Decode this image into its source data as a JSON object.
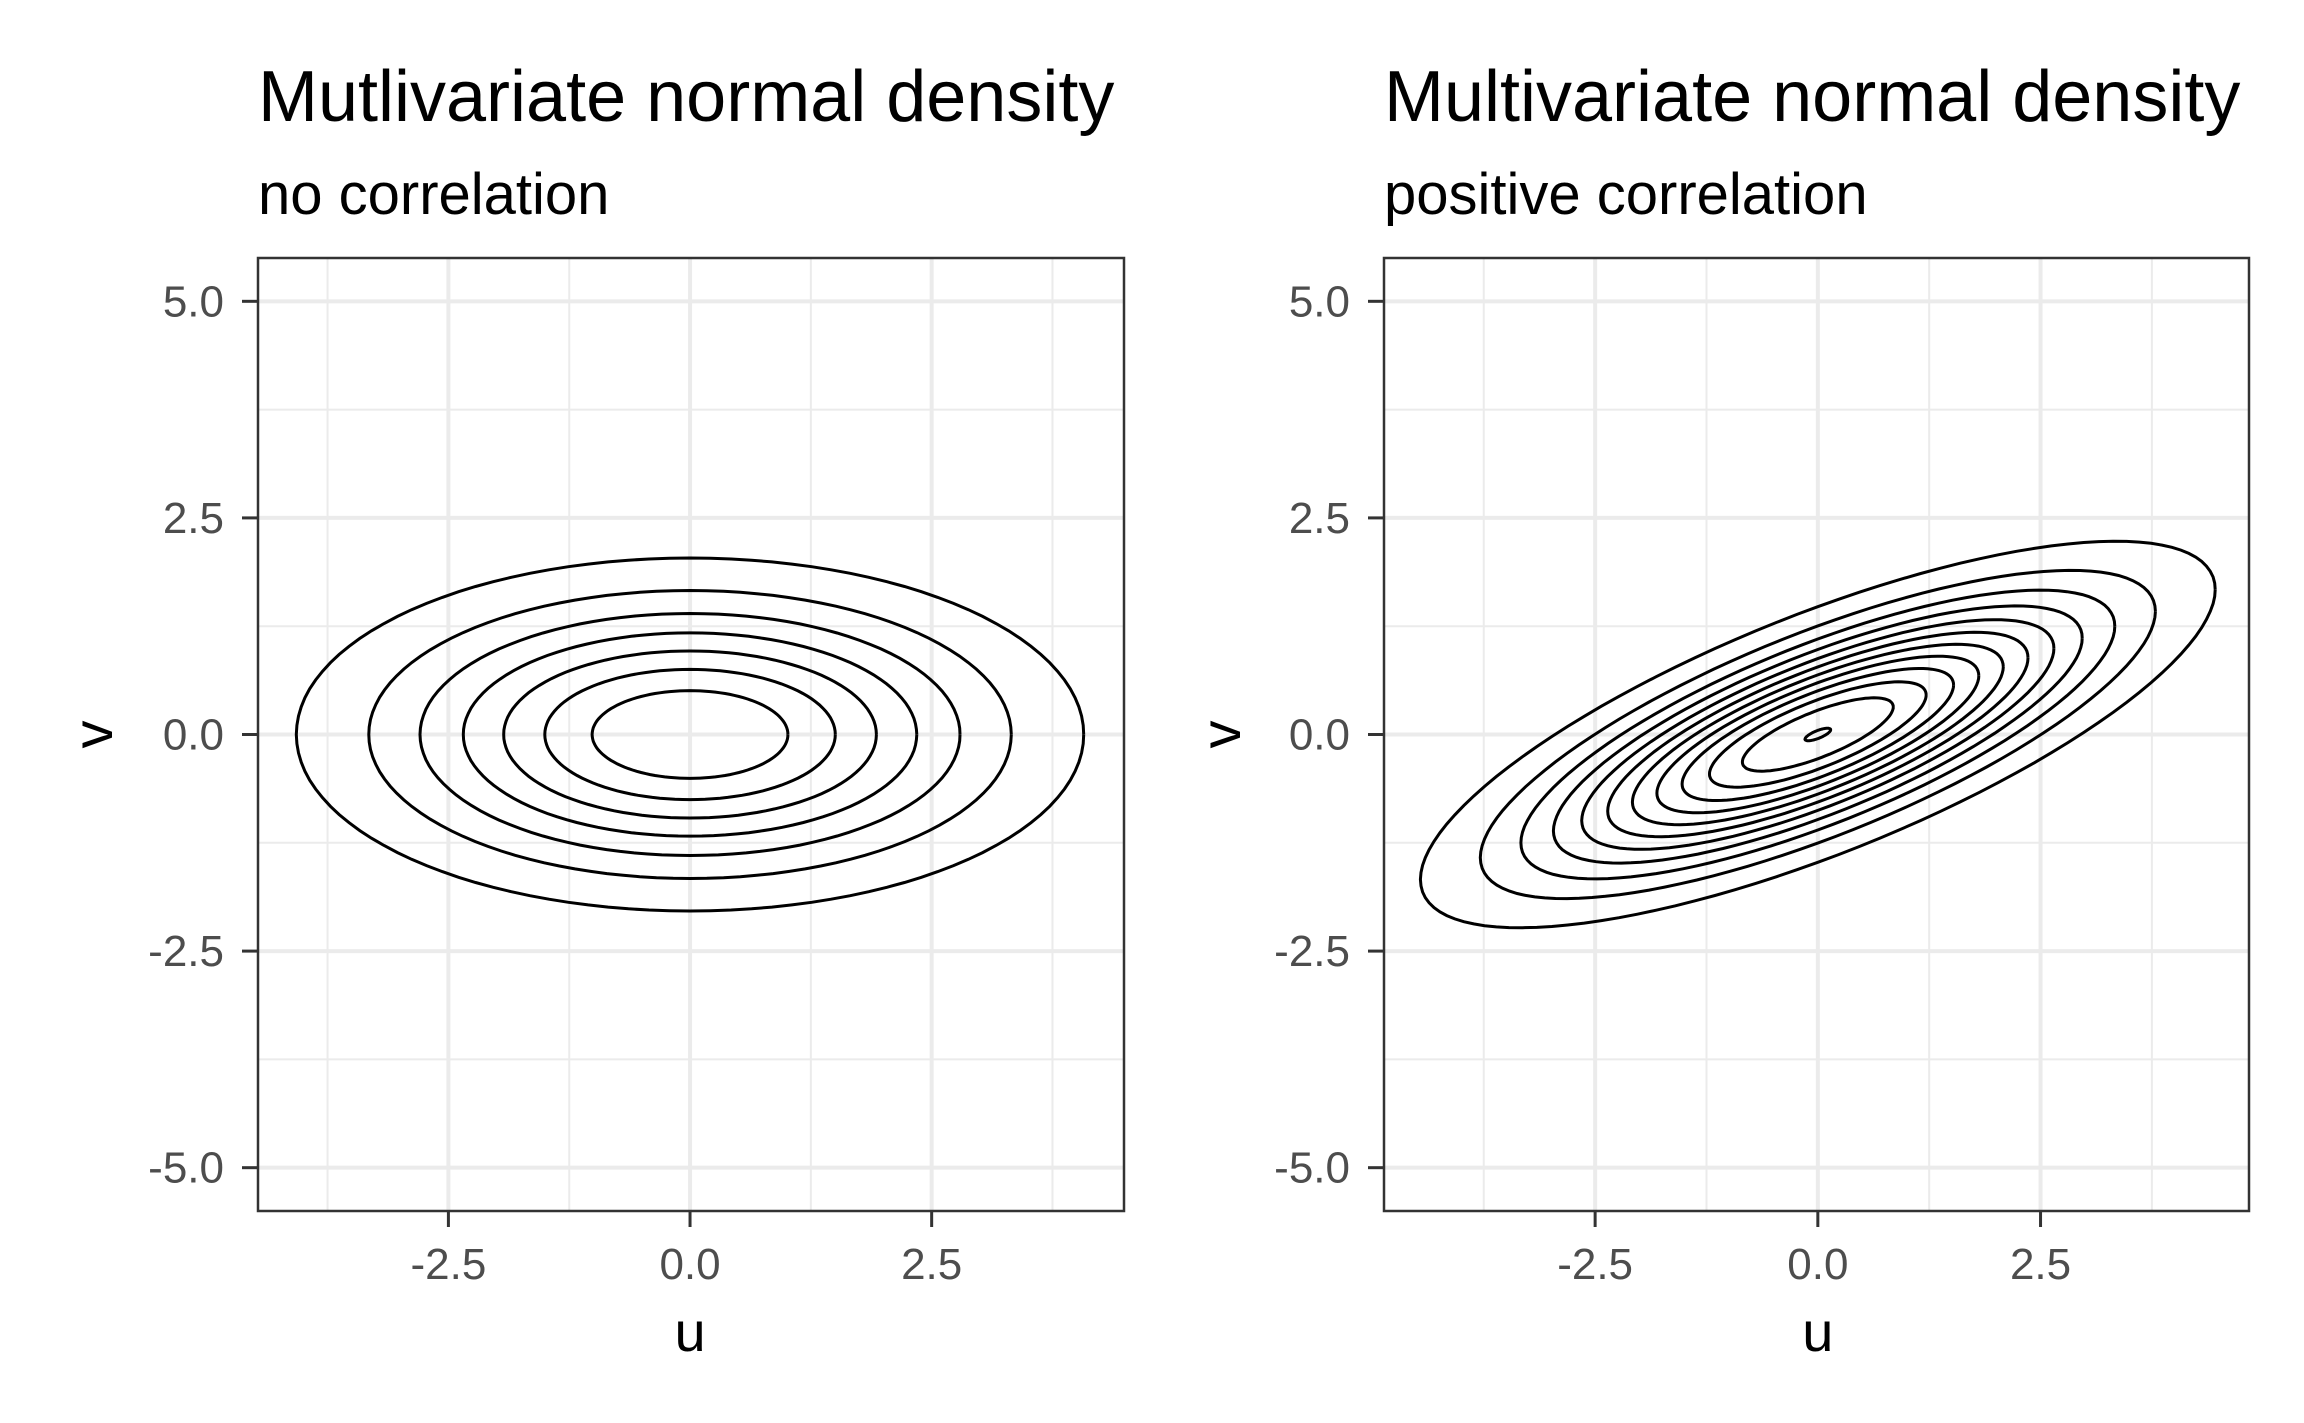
{
  "chart_data": [
    {
      "type": "contour",
      "title": "Mutlivariate normal density",
      "subtitle": "no correlation",
      "xlabel": "u",
      "ylabel": "v",
      "xlim": [
        -4.47,
        4.49
      ],
      "ylim": [
        -5.5,
        5.5
      ],
      "x_ticks": [
        -2.5,
        0.0,
        2.5
      ],
      "x_tick_labels": [
        "-2.5",
        "0.0",
        "2.5"
      ],
      "y_ticks": [
        -5.0,
        -2.5,
        0.0,
        2.5,
        5.0
      ],
      "y_tick_labels": [
        "-5.0",
        "-2.5",
        "0.0",
        "2.5",
        "5.0"
      ],
      "x_minor": [
        -3.75,
        -1.25,
        1.25,
        3.75
      ],
      "y_minor": [
        -3.75,
        -1.25,
        1.25,
        3.75
      ],
      "grid": true,
      "distribution": {
        "mean": [
          0,
          0
        ],
        "sd_u": 2,
        "sd_v": 1,
        "correlation": 0
      },
      "contour_levels": [
        0.01,
        0.02,
        0.03,
        0.04,
        0.05,
        0.06,
        0.07
      ]
    },
    {
      "type": "contour",
      "title": "Multivariate normal density",
      "subtitle": "positive correlation",
      "xlabel": "u",
      "ylabel": "v",
      "xlim": [
        -4.87,
        4.84
      ],
      "ylim": [
        -5.5,
        5.5
      ],
      "x_ticks": [
        -2.5,
        0.0,
        2.5
      ],
      "x_tick_labels": [
        "-2.5",
        "0.0",
        "2.5"
      ],
      "y_ticks": [
        -5.0,
        -2.5,
        0.0,
        2.5,
        5.0
      ],
      "y_tick_labels": [
        "-5.0",
        "-2.5",
        "0.0",
        "2.5",
        "5.0"
      ],
      "x_minor": [
        -3.75,
        -1.25,
        1.25,
        3.75
      ],
      "y_minor": [
        -3.75,
        -1.25,
        1.25,
        3.75
      ],
      "grid": true,
      "distribution": {
        "mean": [
          0,
          0
        ],
        "sd_u": 2,
        "sd_v": 1,
        "correlation": 0.75
      },
      "contour_levels": [
        0.01,
        0.02,
        0.03,
        0.04,
        0.05,
        0.06,
        0.07,
        0.08,
        0.09,
        0.1,
        0.11,
        0.12
      ]
    }
  ],
  "colors": {
    "grid": "#EBEBEB",
    "border": "#333333",
    "tick_text": "#4D4D4D",
    "contour": "#000000"
  }
}
